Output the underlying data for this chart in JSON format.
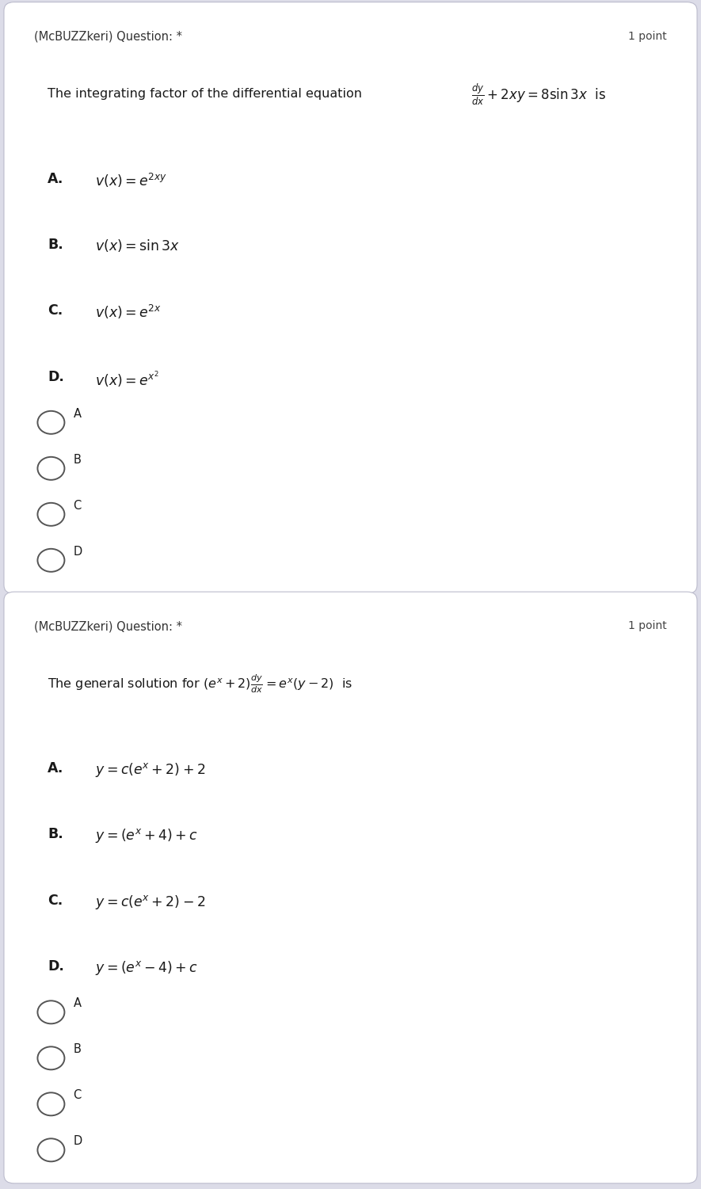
{
  "fig_width": 8.85,
  "fig_height": 15.01,
  "bg_color": "#dcdce8",
  "card_bg": "#ffffff",
  "text_color": "#1a1a1a",
  "header_color": "#333333",
  "point_color": "#444444",
  "q1_header": "(McBUZZkeri) Question: *",
  "q1_point": "1 point",
  "q1_question_pre": "The integrating factor of the differential equation",
  "q2_header": "(McBUZZkeri) Question: *",
  "q2_point": "1 point",
  "q2_question_pre": "The general solution for",
  "radio_options": [
    "A",
    "B",
    "C",
    "D"
  ]
}
